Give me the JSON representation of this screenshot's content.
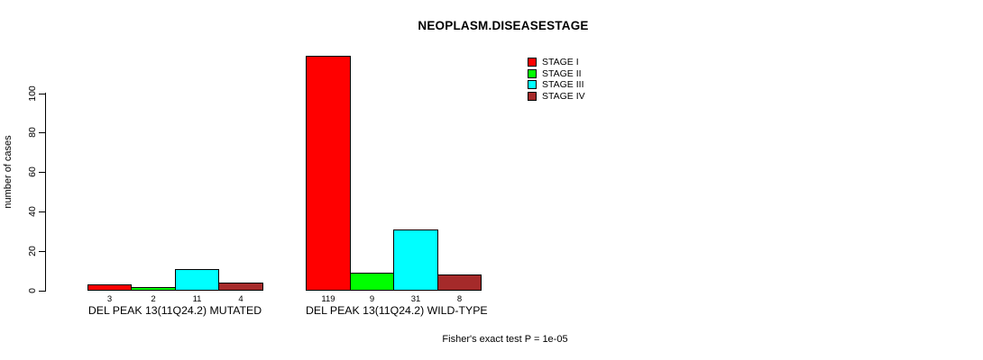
{
  "chart_data": {
    "type": "bar",
    "title": "NEOPLASM.DISEASESTAGE",
    "xlabel": "",
    "ylabel": "number of cases",
    "categories": [
      "DEL PEAK 13(11Q24.2) MUTATED",
      "DEL PEAK 13(11Q24.2) WILD-TYPE"
    ],
    "series": [
      {
        "name": "STAGE I",
        "color": "#FF0000",
        "values": [
          3,
          119
        ]
      },
      {
        "name": "STAGE II",
        "color": "#00FF00",
        "values": [
          2,
          9
        ]
      },
      {
        "name": "STAGE III",
        "color": "#00FFFF",
        "values": [
          11,
          31
        ]
      },
      {
        "name": "STAGE IV",
        "color": "#A52A2A",
        "values": [
          4,
          8
        ]
      }
    ],
    "bar_value_labels": [
      [
        "3",
        "2",
        "11",
        "4"
      ],
      [
        "119",
        "9",
        "31",
        "8"
      ]
    ],
    "yticks": [
      0,
      20,
      40,
      60,
      80,
      100
    ],
    "ylim": [
      0,
      119
    ],
    "grid": false,
    "legend_position": "top-right",
    "bar_border_color": "#000000",
    "annotation": "Fisher's exact test P = 1e-05"
  }
}
